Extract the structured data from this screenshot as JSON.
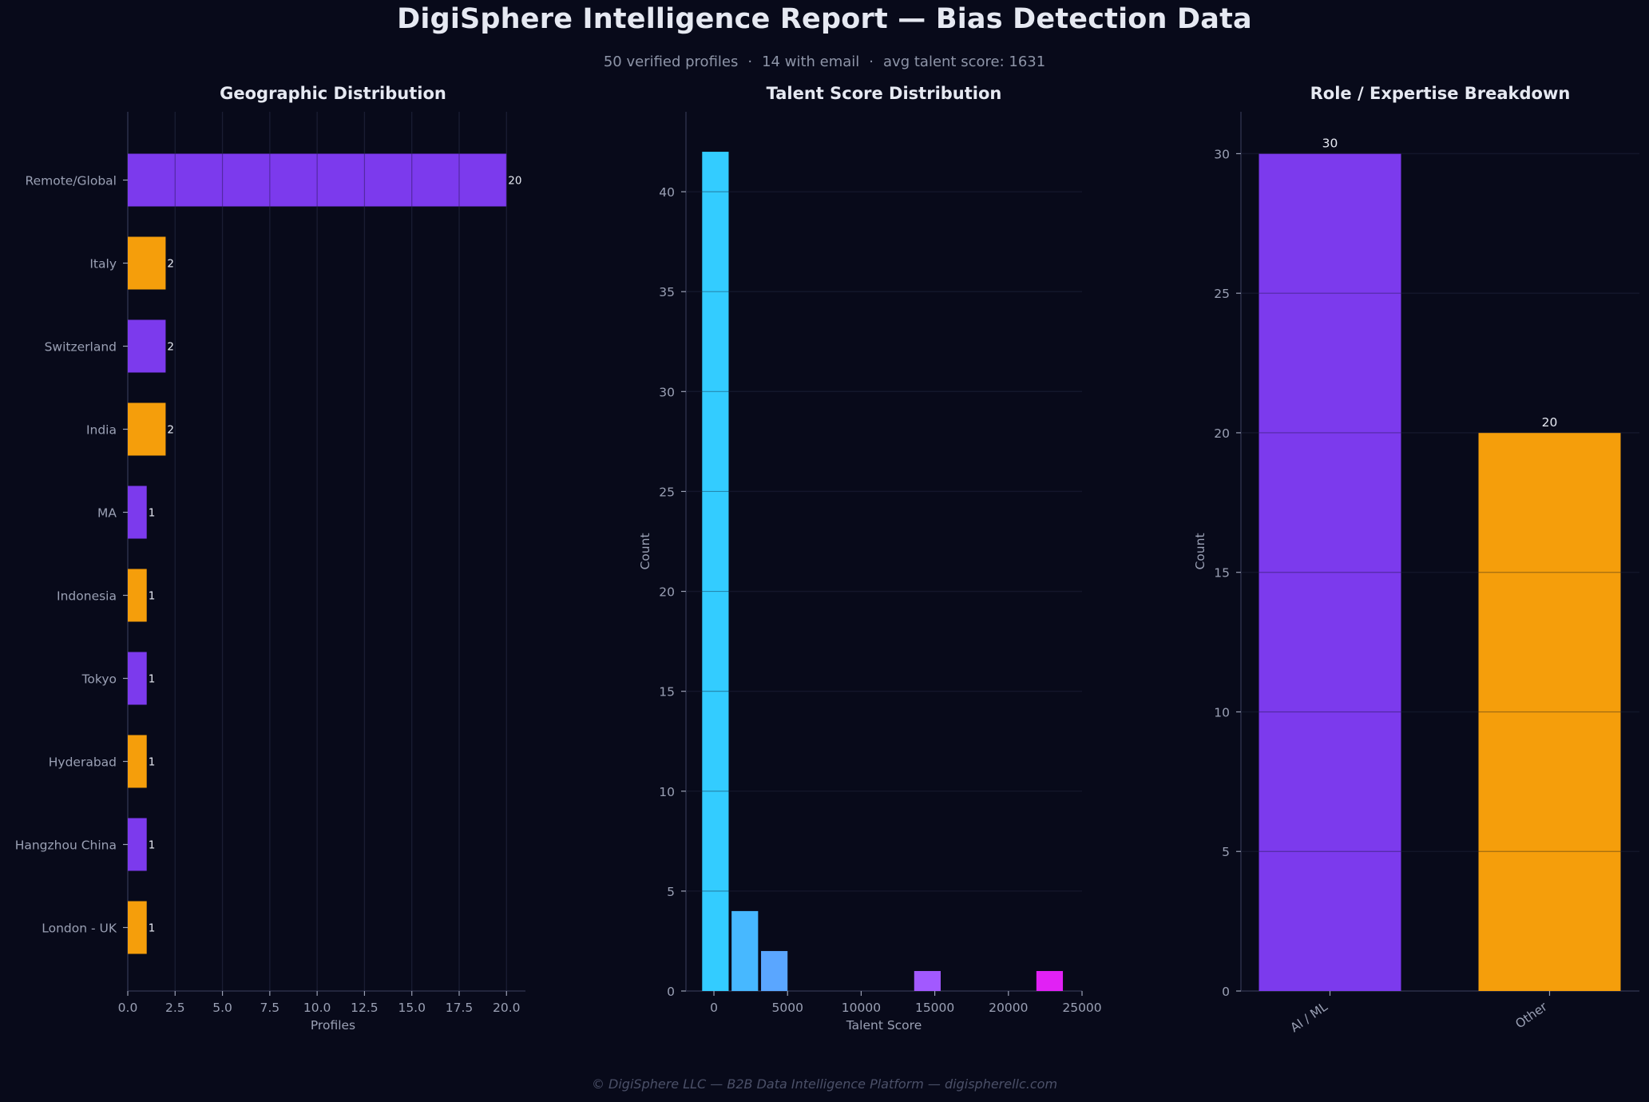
{
  "header": {
    "title": "DigiSphere Intelligence Report — Bias Detection Data",
    "subtitle_parts": [
      "50 verified profiles",
      "14 with email",
      "avg talent score: 1631"
    ],
    "subtitle_sep": "·"
  },
  "footer": {
    "text": "© DigiSphere LLC — B2B Data Intelligence Platform — digispherellc.com"
  },
  "colors": {
    "background": "#080a1a",
    "text": "#e6e9f2",
    "muted": "#9aa0b4",
    "grid": "#1a1d33",
    "purple": "#7c3aed",
    "orange": "#f59e0b"
  },
  "chart_data": [
    {
      "type": "bar",
      "orientation": "horizontal",
      "title": "Geographic Distribution",
      "xlabel": "Profiles",
      "ylabel": "",
      "categories": [
        "Remote/Global",
        "Italy",
        "Switzerland",
        "India",
        "MA",
        "Indonesia",
        "Tokyo",
        "Hyderabad",
        "Hangzhou China",
        "London - UK"
      ],
      "values": [
        20,
        2,
        2,
        2,
        1,
        1,
        1,
        1,
        1,
        1
      ],
      "bar_colors": [
        "#7c3aed",
        "#f59e0b",
        "#7c3aed",
        "#f59e0b",
        "#7c3aed",
        "#f59e0b",
        "#7c3aed",
        "#f59e0b",
        "#7c3aed",
        "#f59e0b"
      ],
      "xlim": [
        0,
        21
      ],
      "xticks": [
        0.0,
        2.5,
        5.0,
        7.5,
        10.0,
        12.5,
        15.0,
        17.5,
        20.0
      ],
      "xtick_labels": [
        "0.0",
        "2.5",
        "5.0",
        "7.5",
        "10.0",
        "12.5",
        "15.0",
        "17.5",
        "20.0"
      ],
      "grid": "vertical",
      "data_labels": true
    },
    {
      "type": "bar",
      "subtype": "histogram",
      "title": "Talent Score Distribution",
      "xlabel": "Talent Score",
      "ylabel": "Count",
      "bins": [
        {
          "start": -800,
          "end": 1000,
          "count": 42,
          "color": "#33ccff"
        },
        {
          "start": 1200,
          "end": 3000,
          "count": 4,
          "color": "#47b8ff"
        },
        {
          "start": 3200,
          "end": 5000,
          "count": 2,
          "color": "#5aa6ff"
        },
        {
          "start": 13600,
          "end": 15400,
          "count": 1,
          "color": "#a259ff"
        },
        {
          "start": 21900,
          "end": 23700,
          "count": 1,
          "color": "#e121f5"
        }
      ],
      "xlim": [
        -1900,
        25000
      ],
      "ylim": [
        0,
        44
      ],
      "xticks": [
        0,
        5000,
        10000,
        15000,
        20000,
        25000
      ],
      "yticks": [
        0,
        5,
        10,
        15,
        20,
        25,
        30,
        35,
        40
      ],
      "grid": "horizontal"
    },
    {
      "type": "bar",
      "title": "Role / Expertise Breakdown",
      "xlabel": "",
      "ylabel": "Count",
      "categories": [
        "AI / ML",
        "Other"
      ],
      "values": [
        30,
        20
      ],
      "bar_colors": [
        "#7c3aed",
        "#f59e0b"
      ],
      "ylim": [
        0,
        31.5
      ],
      "yticks": [
        0,
        5,
        10,
        15,
        20,
        25,
        30
      ],
      "grid": "horizontal",
      "data_labels": true
    }
  ]
}
